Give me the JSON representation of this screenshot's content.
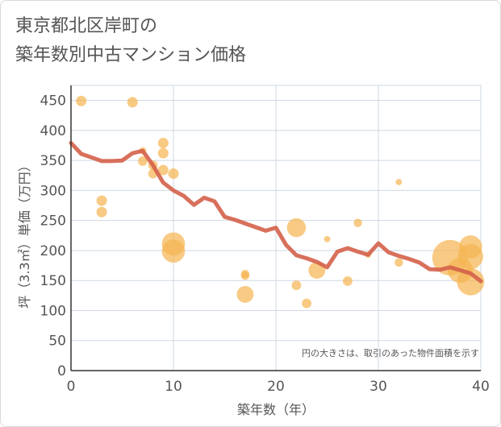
{
  "chart_data": {
    "type": "scatter",
    "title_line1": "東京都北区岸町の",
    "title_line2": "築年数別中古マンション価格",
    "xlabel": "築年数（年）",
    "ylabel": "坪（3.3㎡）単価（万円）",
    "xlim": [
      0,
      40
    ],
    "ylim": [
      0,
      475
    ],
    "x_ticks": [
      0,
      10,
      20,
      30,
      40
    ],
    "y_ticks": [
      0,
      50,
      100,
      150,
      200,
      250,
      300,
      350,
      400,
      450
    ],
    "grid": true,
    "note": "円の大きさは、取引のあった物件面積を示す",
    "colors": {
      "bubble": "#f5b553",
      "line": "#d4604a",
      "grid": "#cfd8e3",
      "axis": "#333333"
    },
    "scatter_points": [
      {
        "x": 1,
        "y": 449,
        "size": 1.0
      },
      {
        "x": 6,
        "y": 447,
        "size": 1.0
      },
      {
        "x": 3,
        "y": 283,
        "size": 1.0
      },
      {
        "x": 3,
        "y": 264,
        "size": 1.0
      },
      {
        "x": 7,
        "y": 366,
        "size": 0.7
      },
      {
        "x": 7,
        "y": 349,
        "size": 0.9
      },
      {
        "x": 8,
        "y": 342,
        "size": 0.9
      },
      {
        "x": 8,
        "y": 328,
        "size": 0.9
      },
      {
        "x": 9,
        "y": 379,
        "size": 1.0
      },
      {
        "x": 9,
        "y": 362,
        "size": 1.0
      },
      {
        "x": 9,
        "y": 334,
        "size": 1.0
      },
      {
        "x": 10,
        "y": 328,
        "size": 1.0
      },
      {
        "x": 10,
        "y": 211,
        "size": 2.2
      },
      {
        "x": 10,
        "y": 199,
        "size": 2.2
      },
      {
        "x": 17,
        "y": 161,
        "size": 0.8
      },
      {
        "x": 17,
        "y": 158,
        "size": 0.8
      },
      {
        "x": 17,
        "y": 127,
        "size": 1.6
      },
      {
        "x": 22,
        "y": 238,
        "size": 1.8
      },
      {
        "x": 22,
        "y": 142,
        "size": 0.9
      },
      {
        "x": 23,
        "y": 112,
        "size": 0.9
      },
      {
        "x": 24,
        "y": 167,
        "size": 1.6
      },
      {
        "x": 25,
        "y": 219,
        "size": 0.6
      },
      {
        "x": 27,
        "y": 149,
        "size": 0.9
      },
      {
        "x": 28,
        "y": 246,
        "size": 0.8
      },
      {
        "x": 29,
        "y": 193,
        "size": 0.6
      },
      {
        "x": 32,
        "y": 314,
        "size": 0.6
      },
      {
        "x": 32,
        "y": 180,
        "size": 0.8
      },
      {
        "x": 37,
        "y": 188,
        "size": 3.4
      },
      {
        "x": 38,
        "y": 167,
        "size": 2.4
      },
      {
        "x": 39,
        "y": 206,
        "size": 2.2
      },
      {
        "x": 39,
        "y": 190,
        "size": 2.4
      },
      {
        "x": 39,
        "y": 148,
        "size": 2.6
      }
    ],
    "line": {
      "x": [
        0,
        1,
        2,
        3,
        4,
        5,
        6,
        7,
        8,
        9,
        10,
        11,
        12,
        13,
        14,
        15,
        16,
        17,
        18,
        19,
        20,
        21,
        22,
        23,
        24,
        25,
        26,
        27,
        28,
        29,
        30,
        31,
        32,
        33,
        34,
        35,
        36,
        37,
        38,
        39,
        40
      ],
      "y": [
        379,
        361,
        355,
        349,
        349,
        350,
        362,
        366,
        342,
        313,
        300,
        291,
        276,
        288,
        282,
        256,
        251,
        245,
        239,
        233,
        238,
        209,
        192,
        187,
        181,
        172,
        198,
        204,
        198,
        193,
        212,
        197,
        191,
        186,
        180,
        169,
        168,
        172,
        167,
        162,
        149
      ]
    }
  }
}
